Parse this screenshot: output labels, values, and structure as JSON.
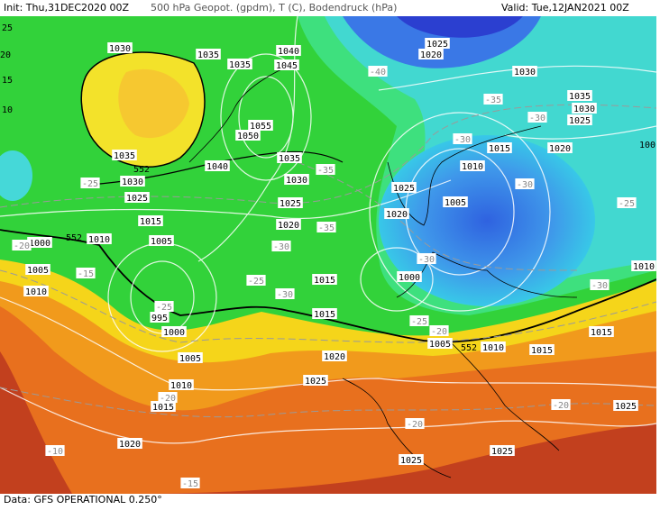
{
  "header": {
    "init": "Init: Thu,31DEC2020 00Z",
    "field": "500 hPa Geopot. (gpdm), T (C), Bodendruck (hPa)",
    "valid": "Valid: Tue,12JAN2021 00Z"
  },
  "footer": "Data: GFS OPERATIONAL 0.250°",
  "pressure_labels": [
    1030,
    1035,
    1035,
    1040,
    1045,
    1055,
    1050,
    1035,
    1030,
    1025,
    1040,
    1035,
    1030,
    1025,
    1020,
    1015,
    1010,
    1005,
    1000,
    1005,
    1010,
    995,
    1000,
    1005,
    1010,
    1015,
    1020,
    1015,
    1015,
    1020,
    1025,
    1025,
    1020,
    1030,
    1035,
    1030,
    1025,
    1020,
    1015,
    1010,
    1005,
    1025,
    1020,
    1000,
    1005,
    1010,
    1015,
    1015,
    1010,
    1025,
    1025,
    1025
  ],
  "temperature_labels": [
    -25,
    -20,
    -15,
    -25,
    -30,
    -25,
    -30,
    -35,
    -35,
    -40,
    -35,
    -30,
    -30,
    -30,
    -25,
    -30,
    -25,
    -20,
    -30,
    -20,
    -20,
    -20,
    -10,
    -15
  ],
  "height_labels": [
    552,
    552,
    552
  ],
  "edge_labels": [
    25,
    20,
    15,
    10,
    100
  ]
}
